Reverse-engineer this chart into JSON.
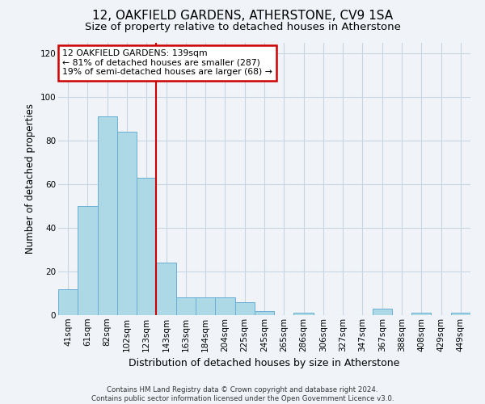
{
  "title": "12, OAKFIELD GARDENS, ATHERSTONE, CV9 1SA",
  "subtitle": "Size of property relative to detached houses in Atherstone",
  "xlabel": "Distribution of detached houses by size in Atherstone",
  "ylabel": "Number of detached properties",
  "bin_labels": [
    "41sqm",
    "61sqm",
    "82sqm",
    "102sqm",
    "123sqm",
    "143sqm",
    "163sqm",
    "184sqm",
    "204sqm",
    "225sqm",
    "245sqm",
    "265sqm",
    "286sqm",
    "306sqm",
    "327sqm",
    "347sqm",
    "367sqm",
    "388sqm",
    "408sqm",
    "429sqm",
    "449sqm"
  ],
  "bar_heights": [
    12,
    50,
    91,
    84,
    63,
    24,
    8,
    8,
    8,
    6,
    2,
    0,
    1,
    0,
    0,
    0,
    3,
    0,
    1,
    0,
    1
  ],
  "bar_color": "#add8e6",
  "bar_edge_color": "#6aafd6",
  "red_line_index": 5,
  "annotation_line1": "12 OAKFIELD GARDENS: 139sqm",
  "annotation_line2": "← 81% of detached houses are smaller (287)",
  "annotation_line3": "19% of semi-detached houses are larger (68) →",
  "annotation_box_color": "white",
  "annotation_box_edge": "#cc0000",
  "red_line_color": "#cc0000",
  "ylim": [
    0,
    125
  ],
  "yticks": [
    0,
    20,
    40,
    60,
    80,
    100,
    120
  ],
  "grid_color": "#c8d4e0",
  "footer_line1": "Contains HM Land Registry data © Crown copyright and database right 2024.",
  "footer_line2": "Contains public sector information licensed under the Open Government Licence v3.0.",
  "bg_color": "#f0f4f8",
  "title_fontsize": 11,
  "subtitle_fontsize": 9.5,
  "xlabel_fontsize": 9,
  "ylabel_fontsize": 8.5,
  "tick_fontsize": 7.5
}
